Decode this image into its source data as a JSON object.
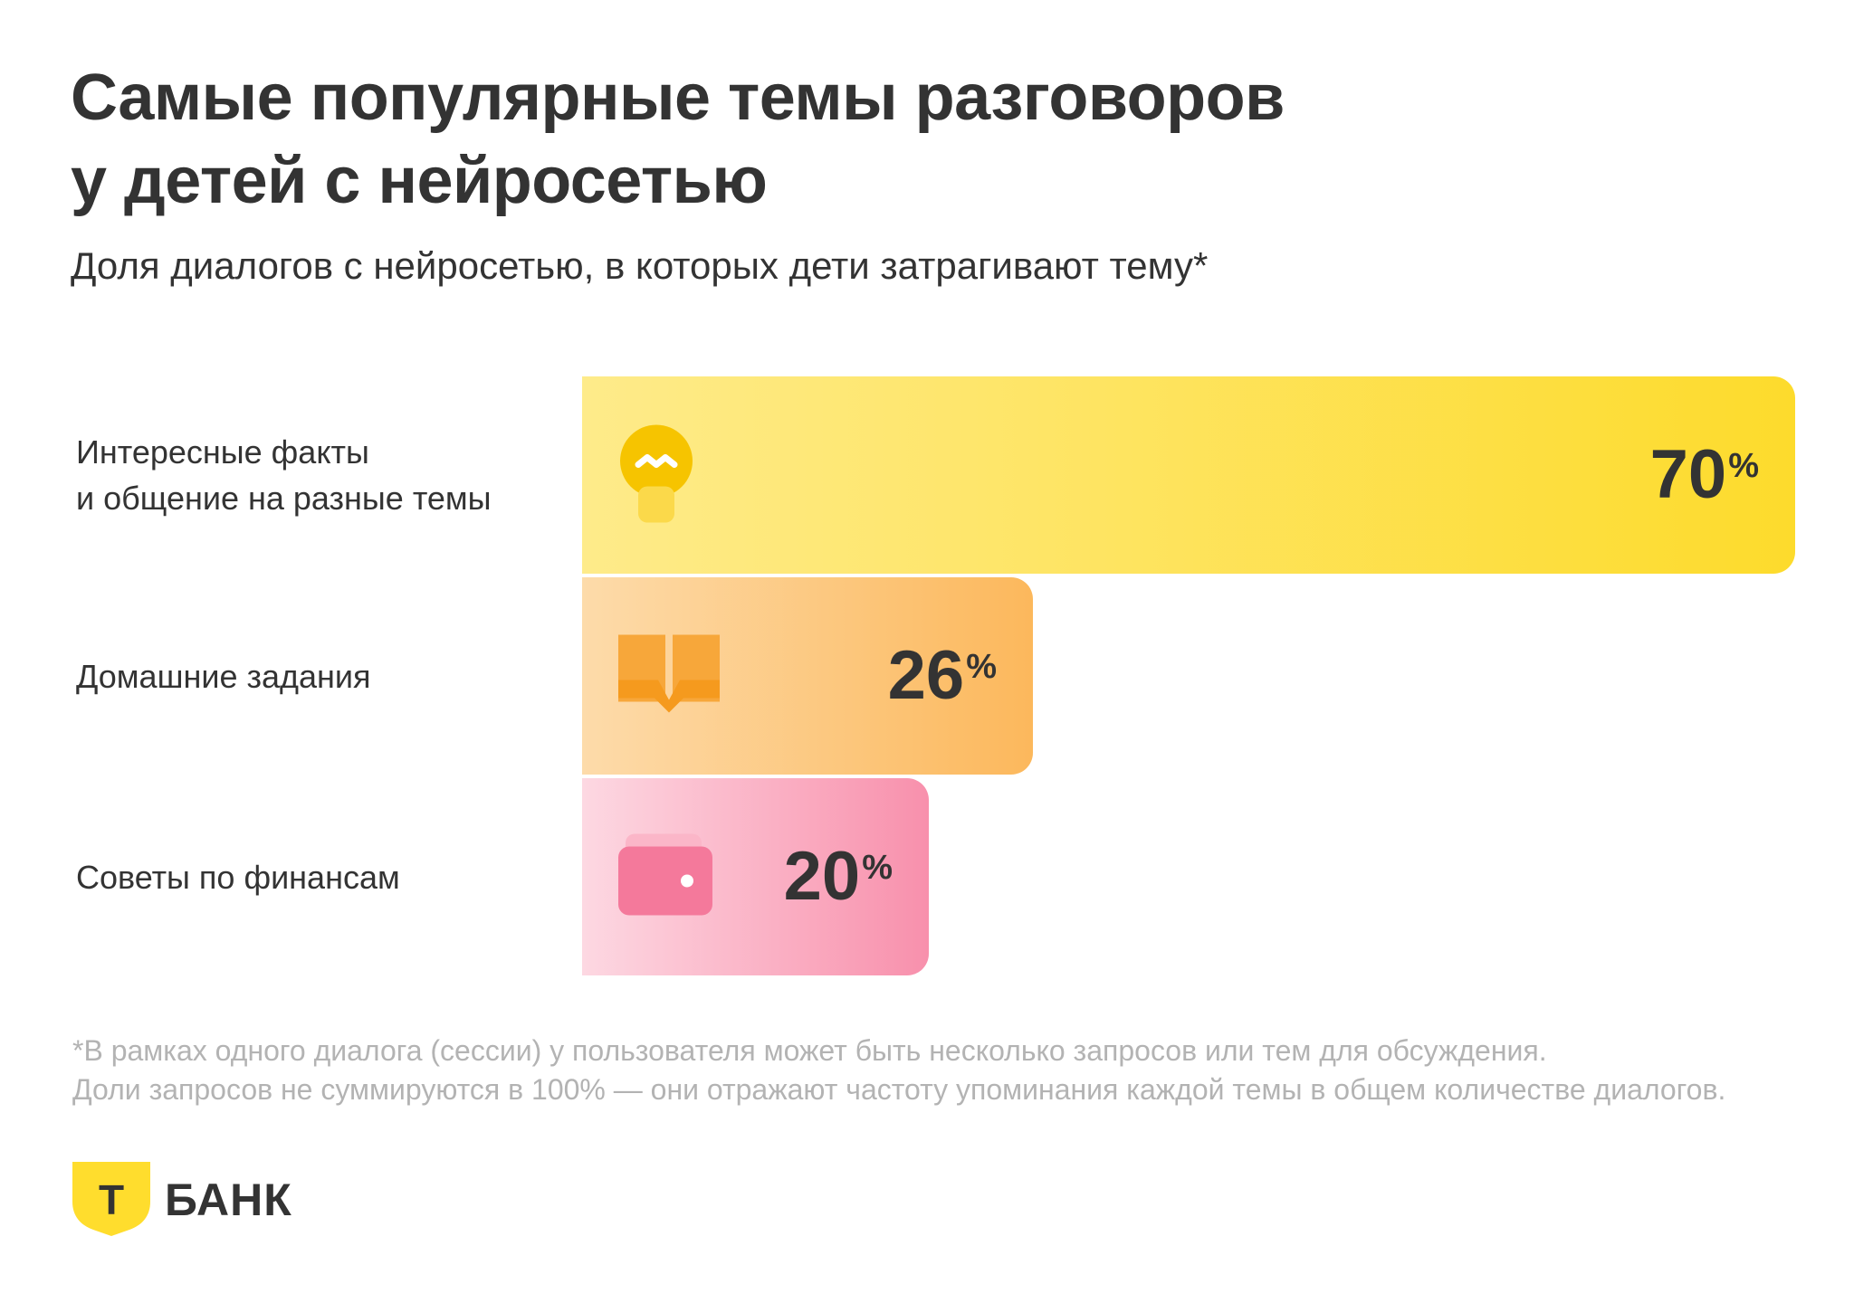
{
  "header": {
    "title_line1": "Самые популярные темы разговоров",
    "title_line2": "у детей с нейросетью",
    "subtitle": "Доля диалогов с нейросетью, в которых дети затрагивают тему*"
  },
  "chart_data": {
    "type": "bar",
    "orientation": "horizontal",
    "title": "Самые популярные темы разговоров у детей с нейросетью",
    "subtitle": "Доля диалогов с нейросетью, в которых дети затрагивают тему*",
    "categories": [
      "Интересные факты и общение на разные темы",
      "Домашние задания",
      "Советы по финансам"
    ],
    "category_lines": [
      [
        "Интересные факты",
        "и общение на разные темы"
      ],
      [
        "Домашние задания"
      ],
      [
        "Советы по финансам"
      ]
    ],
    "values": [
      70,
      26,
      20
    ],
    "value_labels": [
      "70",
      "26",
      "20"
    ],
    "unit": "%",
    "icons": [
      "lightbulb-icon",
      "book-icon",
      "wallet-icon"
    ],
    "colors": [
      [
        "#FEEB8A",
        "#FDDB2C"
      ],
      [
        "#FDDBAA",
        "#FCB85C"
      ],
      [
        "#FDD8E2",
        "#F890AC"
      ]
    ],
    "grid": false,
    "legend": "none",
    "xlim": [
      0,
      70
    ]
  },
  "footnote": {
    "line1": "*В рамках одного диалога (сессии) у пользователя может быть несколько запросов или тем для обсуждения.",
    "line2": "Доли запросов не суммируются в 100% — они отражают частоту упоминания каждой темы в общем количестве диалогов."
  },
  "brand": {
    "shield_letter": "Т",
    "name": "БАНК",
    "color": "#FFDD2D"
  }
}
